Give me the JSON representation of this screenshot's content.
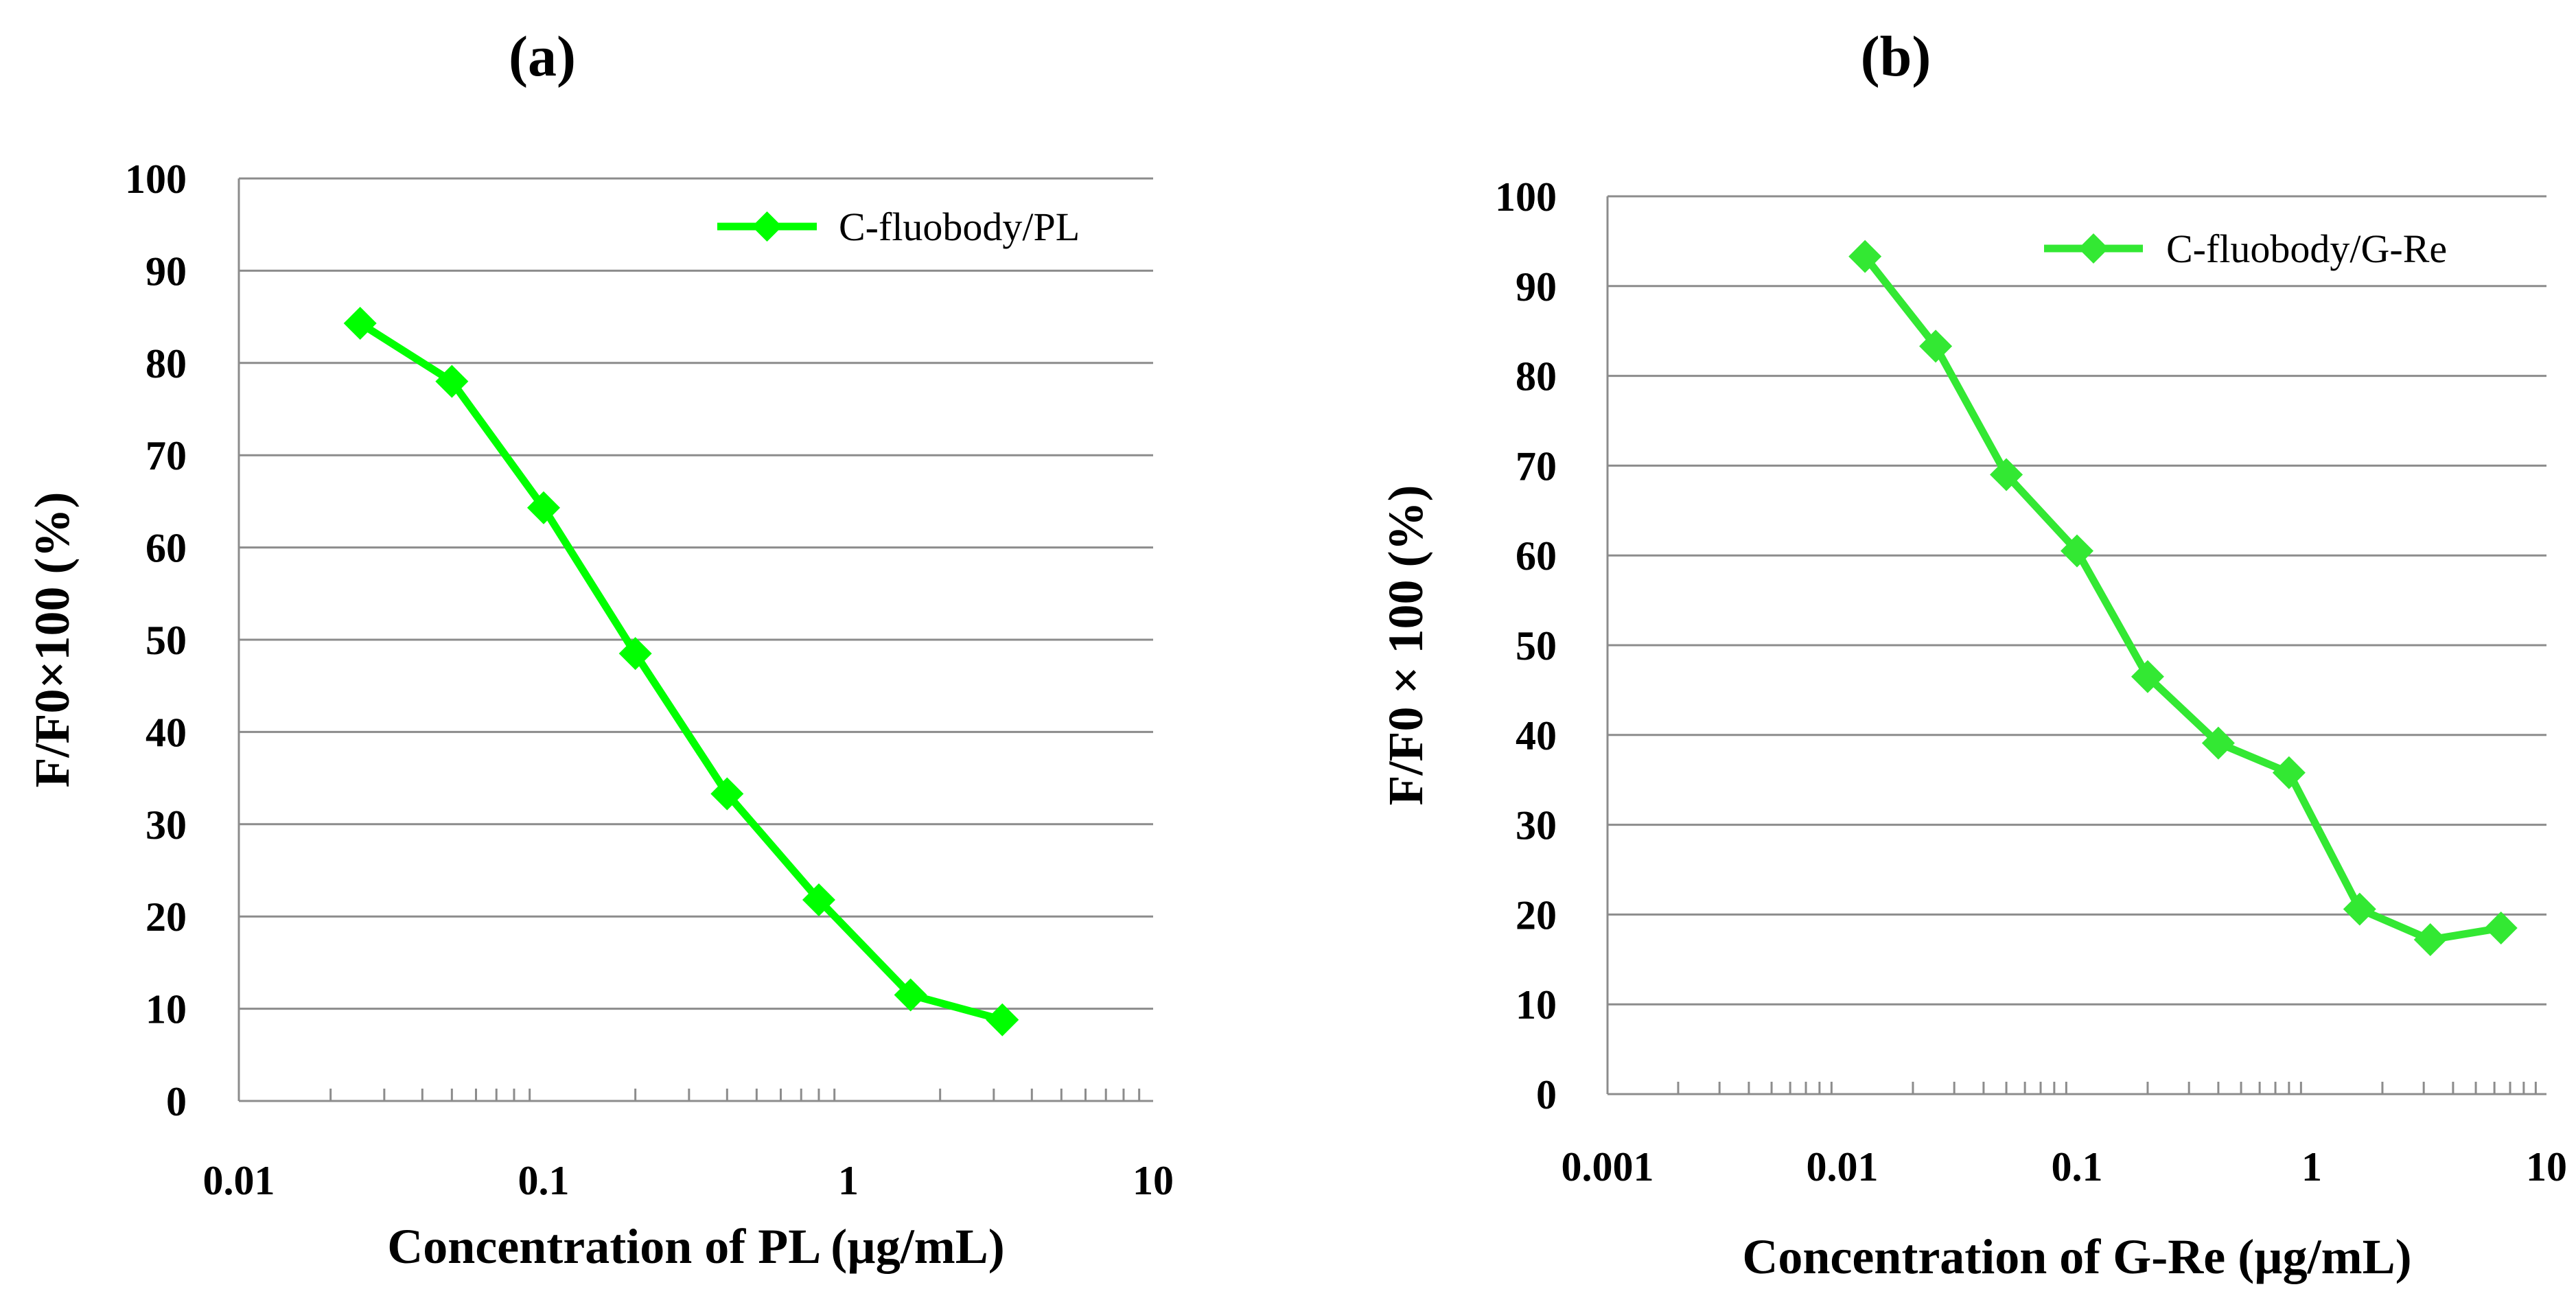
{
  "chart_data": [
    {
      "type": "line",
      "panel_label": "(a)",
      "xscale": "log",
      "xlim": [
        0.01,
        10
      ],
      "ylim": [
        0,
        100
      ],
      "x_ticks": [
        "0.01",
        "0.1",
        "1",
        "10"
      ],
      "y_ticks": [
        "0",
        "10",
        "20",
        "30",
        "40",
        "50",
        "60",
        "70",
        "80",
        "90",
        "100"
      ],
      "xlabel": "Concentration of PL (µg/mL)",
      "ylabel": "F/F0×100 (%)",
      "grid": true,
      "legend_position": "top-right",
      "series": [
        {
          "name": "C-fluobody/PL",
          "color": "#00ff00",
          "x": [
            0.025,
            0.05,
            0.1,
            0.2,
            0.4,
            0.8,
            1.6,
            3.2
          ],
          "y": [
            84.3,
            78,
            64.3,
            48.5,
            33.3,
            21.8,
            11.5,
            8.8
          ]
        }
      ]
    },
    {
      "type": "line",
      "panel_label": "(b)",
      "xscale": "log",
      "xlim": [
        0.001,
        10
      ],
      "ylim": [
        0,
        100
      ],
      "x_ticks": [
        "0.001",
        "0.01",
        "0.1",
        "1",
        "10"
      ],
      "y_ticks": [
        "0",
        "10",
        "20",
        "30",
        "40",
        "50",
        "60",
        "70",
        "80",
        "90",
        "100"
      ],
      "xlabel": "Concentration of G-Re (µg/mL)",
      "ylabel": "F/F0 × 100 (%)",
      "grid": true,
      "legend_position": "top-right",
      "series": [
        {
          "name": "C-fluobody/G-Re",
          "color": "#33e833",
          "x": [
            0.0125,
            0.025,
            0.05,
            0.1,
            0.2,
            0.4,
            0.8,
            1.6,
            3.2,
            6.4
          ],
          "y": [
            93.3,
            83.3,
            69,
            60.5,
            46.5,
            39.1,
            35.8,
            20.6,
            17.2,
            18.5
          ]
        }
      ]
    }
  ]
}
